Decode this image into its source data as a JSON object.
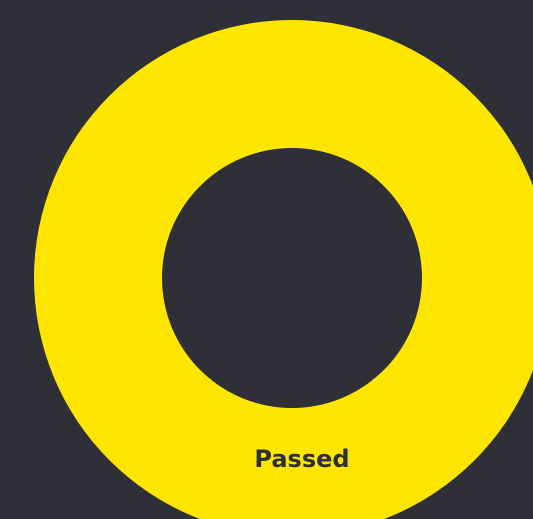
{
  "chart_data": {
    "type": "pie",
    "categories": [
      "Passed"
    ],
    "values": [
      100
    ],
    "colors": [
      "#ffe600"
    ]
  }
}
